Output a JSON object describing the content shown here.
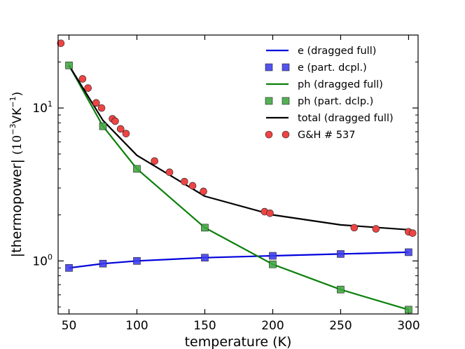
{
  "chart_data": {
    "type": "line",
    "xlabel": "temperature (K)",
    "ylabel_main": "|thermopower| ",
    "ylabel_unit": "(10",
    "ylabel_exp": "−3",
    "ylabel_unit2": "VK",
    "ylabel_exp2": "−1",
    "ylabel_close": ")",
    "xlim": [
      42,
      307
    ],
    "ylim": [
      0.45,
      30
    ],
    "yscale": "log",
    "x_ticks": [
      50,
      100,
      150,
      200,
      250,
      300
    ],
    "x_tick_labels": [
      "50",
      "100",
      "150",
      "200",
      "250",
      "300"
    ],
    "y_major_ticks": [
      1,
      10
    ],
    "y_tick_labels": [
      {
        "base": "10",
        "exp": "0"
      },
      {
        "base": "10",
        "exp": "1"
      }
    ],
    "legend_position": "top-right",
    "series": [
      {
        "name": "e (dragged full)",
        "kind": "line",
        "color": "#0000dd",
        "x": [
          50,
          75,
          100,
          150,
          200,
          250,
          300
        ],
        "y": [
          0.9,
          0.96,
          1.0,
          1.05,
          1.08,
          1.11,
          1.14
        ]
      },
      {
        "name": "e (part. dcpl.)",
        "kind": "square",
        "color": "#3b3bee",
        "x": [
          50,
          75,
          100,
          150,
          200,
          250,
          300
        ],
        "y": [
          0.9,
          0.96,
          1.0,
          1.05,
          1.08,
          1.11,
          1.14
        ]
      },
      {
        "name": "ph (dragged full)",
        "kind": "line",
        "color": "#0a800a",
        "x": [
          50,
          75,
          100,
          150,
          200,
          250,
          300
        ],
        "y": [
          19.0,
          7.6,
          4.0,
          1.65,
          0.95,
          0.65,
          0.48
        ]
      },
      {
        "name": "ph (part. dclp.)",
        "kind": "square",
        "color": "#3fa53f",
        "x": [
          50,
          75,
          100,
          150,
          200,
          250,
          300
        ],
        "y": [
          19.0,
          7.6,
          4.0,
          1.65,
          0.95,
          0.65,
          0.48
        ]
      },
      {
        "name": "total (dragged full)",
        "kind": "line",
        "color": "#000000",
        "x": [
          50,
          75,
          100,
          150,
          200,
          250,
          300
        ],
        "y": [
          19.0,
          8.3,
          4.9,
          2.65,
          2.0,
          1.72,
          1.6
        ]
      },
      {
        "name": "G&H # 537",
        "kind": "circle",
        "color": "#ee4444",
        "x": [
          44,
          60,
          64,
          70,
          74,
          82,
          84,
          88,
          92,
          113,
          124,
          135,
          141,
          149,
          194,
          198,
          260,
          276,
          300,
          303
        ],
        "y": [
          26.5,
          15.5,
          13.5,
          10.8,
          10.0,
          8.5,
          8.2,
          7.3,
          6.8,
          4.5,
          3.8,
          3.3,
          3.1,
          2.85,
          2.1,
          2.05,
          1.65,
          1.62,
          1.55,
          1.52
        ]
      }
    ]
  }
}
